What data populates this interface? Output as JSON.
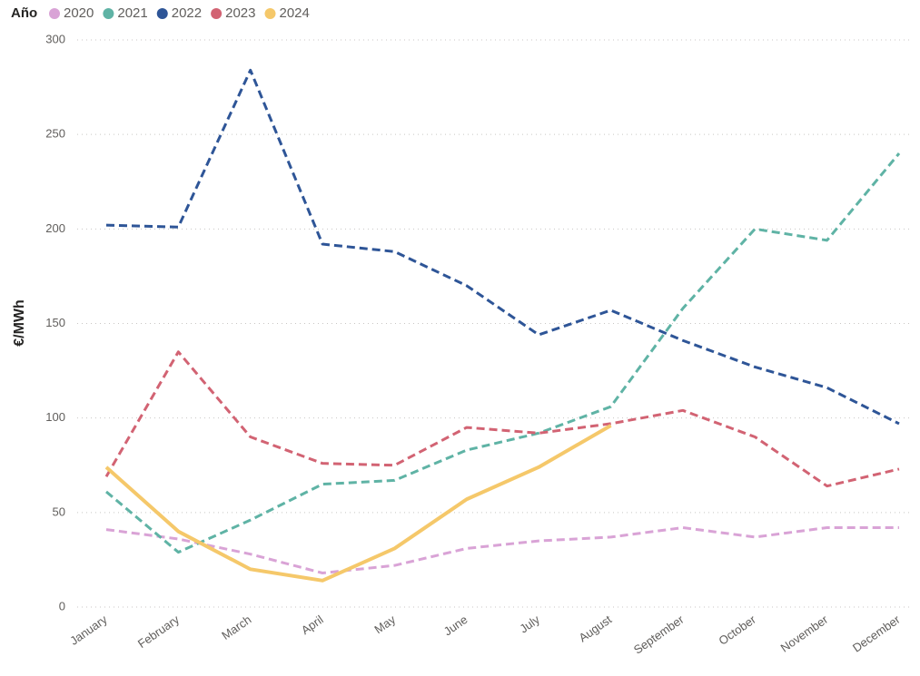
{
  "chart_data": {
    "type": "line",
    "legend_title": "Año",
    "y_label": "€/MWh",
    "categories": [
      "January",
      "February",
      "March",
      "April",
      "May",
      "June",
      "July",
      "August",
      "September",
      "October",
      "November",
      "December"
    ],
    "ylim": [
      0,
      300
    ],
    "yticks": [
      0,
      50,
      100,
      150,
      200,
      250,
      300
    ],
    "grid": true,
    "legend": "top-left",
    "series": [
      {
        "name": "2020",
        "color": "#d9a3d6",
        "style": "dashed",
        "values": [
          41,
          36,
          28,
          18,
          22,
          31,
          35,
          37,
          42,
          37,
          42,
          42
        ]
      },
      {
        "name": "2021",
        "color": "#5fb3a5",
        "style": "dashed",
        "values": [
          61,
          29,
          46,
          65,
          67,
          83,
          92,
          106,
          158,
          200,
          194,
          240
        ]
      },
      {
        "name": "2022",
        "color": "#2e5597",
        "style": "dashed",
        "values": [
          202,
          201,
          284,
          192,
          188,
          170,
          144,
          157,
          141,
          127,
          116,
          97
        ]
      },
      {
        "name": "2023",
        "color": "#d26373",
        "style": "dashed",
        "values": [
          69,
          135,
          90,
          76,
          75,
          95,
          92,
          97,
          104,
          90,
          64,
          73
        ]
      },
      {
        "name": "2024",
        "color": "#f5c86a",
        "style": "solid",
        "values": [
          74,
          40,
          20,
          14,
          31,
          57,
          74,
          96,
          null,
          null,
          null,
          null
        ]
      }
    ]
  }
}
